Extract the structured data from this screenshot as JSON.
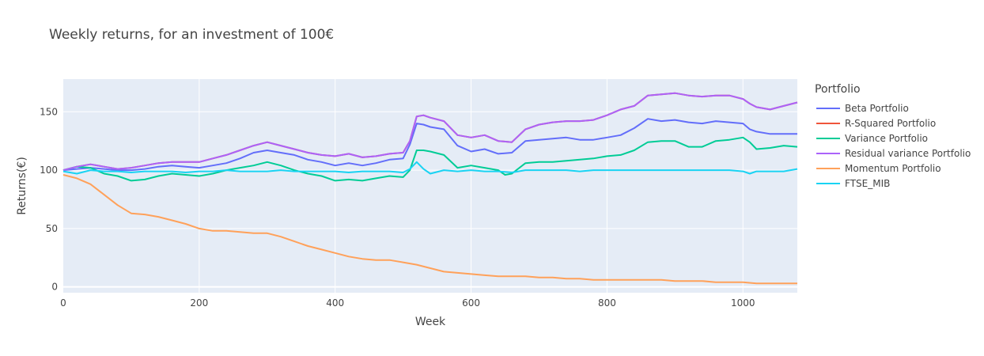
{
  "chart_data": {
    "type": "line",
    "title": "Weekly returns, for an investment of 100€",
    "xlabel": "Week",
    "ylabel": "Returns(€)",
    "xlim": [
      0,
      1080
    ],
    "ylim": [
      -5,
      178
    ],
    "xticks": [
      0,
      200,
      400,
      600,
      800,
      1000
    ],
    "yticks": [
      0,
      50,
      100,
      150
    ],
    "grid": true,
    "legend_title": "Portfolio",
    "legend_position": "right",
    "series": [
      {
        "name": "Beta Portfolio",
        "color": "#636efa",
        "x": [
          0,
          20,
          40,
          60,
          80,
          100,
          120,
          140,
          160,
          180,
          200,
          220,
          240,
          260,
          280,
          300,
          320,
          340,
          360,
          380,
          400,
          420,
          440,
          460,
          480,
          500,
          510,
          520,
          530,
          540,
          560,
          580,
          600,
          620,
          640,
          660,
          680,
          700,
          720,
          740,
          760,
          780,
          800,
          820,
          840,
          860,
          880,
          900,
          920,
          940,
          960,
          980,
          1000,
          1010,
          1020,
          1040,
          1060,
          1080
        ],
        "y": [
          100,
          101,
          102,
          101,
          100,
          100,
          101,
          103,
          104,
          103,
          102,
          104,
          106,
          110,
          115,
          117,
          115,
          113,
          109,
          107,
          104,
          106,
          104,
          106,
          109,
          110,
          122,
          140,
          139,
          137,
          135,
          121,
          116,
          118,
          114,
          115,
          125,
          126,
          127,
          128,
          126,
          126,
          128,
          130,
          136,
          144,
          142,
          143,
          141,
          140,
          142,
          141,
          140,
          135,
          133,
          131,
          131,
          131
        ]
      },
      {
        "name": "R-Squared Portfolio",
        "color": "#ef553b",
        "x": [
          0,
          20,
          40,
          60,
          80,
          100,
          120,
          140,
          160,
          180,
          200,
          220,
          240,
          260,
          280,
          300,
          320,
          340,
          360,
          380,
          400,
          420,
          440,
          460,
          480,
          500,
          510,
          520,
          530,
          540,
          560,
          580,
          600,
          620,
          640,
          660,
          680,
          700,
          720,
          740,
          760,
          780,
          800,
          820,
          840,
          860,
          880,
          900,
          920,
          940,
          960,
          980,
          1000,
          1010,
          1020,
          1040,
          1060,
          1080
        ],
        "y": [
          100,
          103,
          105,
          103,
          101,
          102,
          104,
          106,
          107,
          107,
          107,
          110,
          113,
          117,
          121,
          124,
          121,
          118,
          115,
          113,
          112,
          114,
          111,
          112,
          114,
          115,
          125,
          146,
          147,
          145,
          142,
          130,
          128,
          130,
          125,
          124,
          135,
          139,
          141,
          142,
          142,
          143,
          147,
          152,
          155,
          164,
          165,
          166,
          164,
          163,
          164,
          164,
          161,
          157,
          154,
          152,
          155,
          158
        ]
      },
      {
        "name": "Variance Portfolio",
        "color": "#00cc96",
        "x": [
          0,
          20,
          40,
          60,
          80,
          100,
          120,
          140,
          160,
          180,
          200,
          220,
          240,
          260,
          280,
          300,
          320,
          340,
          360,
          380,
          400,
          420,
          440,
          460,
          480,
          500,
          510,
          520,
          530,
          540,
          560,
          580,
          600,
          620,
          640,
          650,
          660,
          680,
          700,
          720,
          740,
          760,
          780,
          800,
          820,
          840,
          860,
          880,
          900,
          920,
          940,
          960,
          980,
          1000,
          1010,
          1020,
          1040,
          1060,
          1080
        ],
        "y": [
          100,
          103,
          102,
          97,
          95,
          91,
          92,
          95,
          97,
          96,
          95,
          97,
          100,
          102,
          104,
          107,
          104,
          100,
          97,
          95,
          91,
          92,
          91,
          93,
          95,
          94,
          100,
          117,
          117,
          116,
          113,
          102,
          104,
          102,
          100,
          96,
          97,
          106,
          107,
          107,
          108,
          109,
          110,
          112,
          113,
          117,
          124,
          125,
          125,
          120,
          120,
          125,
          126,
          128,
          124,
          118,
          119,
          121,
          120
        ]
      },
      {
        "name": "Residual variance Portfolio",
        "color": "#ab63fa",
        "x": [
          0,
          20,
          40,
          60,
          80,
          100,
          120,
          140,
          160,
          180,
          200,
          220,
          240,
          260,
          280,
          300,
          320,
          340,
          360,
          380,
          400,
          420,
          440,
          460,
          480,
          500,
          510,
          520,
          530,
          540,
          560,
          580,
          600,
          620,
          640,
          660,
          680,
          700,
          720,
          740,
          760,
          780,
          800,
          820,
          840,
          860,
          880,
          900,
          920,
          940,
          960,
          980,
          1000,
          1010,
          1020,
          1040,
          1060,
          1080
        ],
        "y": [
          100,
          103,
          105,
          103,
          101,
          102,
          104,
          106,
          107,
          107,
          107,
          110,
          113,
          117,
          121,
          124,
          121,
          118,
          115,
          113,
          112,
          114,
          111,
          112,
          114,
          115,
          125,
          146,
          147,
          145,
          142,
          130,
          128,
          130,
          125,
          124,
          135,
          139,
          141,
          142,
          142,
          143,
          147,
          152,
          155,
          164,
          165,
          166,
          164,
          163,
          164,
          164,
          161,
          157,
          154,
          152,
          155,
          158
        ]
      },
      {
        "name": "Momentum Portfolio",
        "color": "#ffa15a",
        "x": [
          0,
          20,
          40,
          60,
          80,
          100,
          120,
          140,
          160,
          180,
          200,
          220,
          240,
          260,
          280,
          300,
          320,
          340,
          360,
          380,
          400,
          420,
          440,
          460,
          480,
          500,
          520,
          540,
          560,
          580,
          600,
          620,
          640,
          660,
          680,
          700,
          720,
          740,
          760,
          780,
          800,
          820,
          840,
          860,
          880,
          900,
          920,
          940,
          960,
          980,
          1000,
          1020,
          1040,
          1060,
          1080
        ],
        "y": [
          96,
          93,
          88,
          79,
          70,
          63,
          62,
          60,
          57,
          54,
          50,
          48,
          48,
          47,
          46,
          46,
          43,
          39,
          35,
          32,
          29,
          26,
          24,
          23,
          23,
          21,
          19,
          16,
          13,
          12,
          11,
          10,
          9,
          9,
          9,
          8,
          8,
          7,
          7,
          6,
          6,
          6,
          6,
          6,
          6,
          5,
          5,
          5,
          4,
          4,
          4,
          3,
          3,
          3,
          3
        ]
      },
      {
        "name": "FTSE_MIB",
        "color": "#19d3f3",
        "x": [
          0,
          20,
          40,
          60,
          80,
          100,
          120,
          140,
          160,
          180,
          200,
          220,
          240,
          260,
          280,
          300,
          320,
          340,
          360,
          380,
          400,
          420,
          440,
          460,
          480,
          500,
          510,
          520,
          530,
          540,
          560,
          580,
          600,
          620,
          640,
          660,
          680,
          700,
          720,
          740,
          760,
          780,
          800,
          820,
          840,
          860,
          880,
          900,
          920,
          940,
          960,
          980,
          1000,
          1010,
          1020,
          1040,
          1060,
          1080
        ],
        "y": [
          99,
          97,
          100,
          99,
          99,
          98,
          99,
          99,
          99,
          98,
          99,
          99,
          100,
          99,
          99,
          99,
          100,
          99,
          99,
          99,
          99,
          98,
          99,
          99,
          99,
          98,
          101,
          107,
          101,
          97,
          100,
          99,
          100,
          99,
          99,
          98,
          100,
          100,
          100,
          100,
          99,
          100,
          100,
          100,
          100,
          100,
          100,
          100,
          100,
          100,
          100,
          100,
          99,
          97,
          99,
          99,
          99,
          101
        ]
      }
    ]
  }
}
